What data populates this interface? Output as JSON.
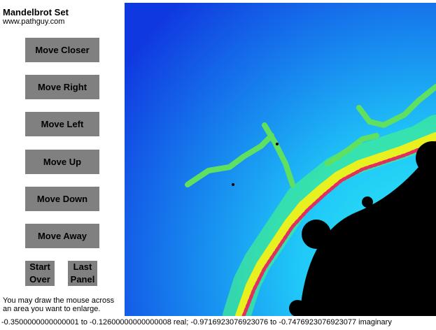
{
  "header": {
    "title": "Mandelbrot Set",
    "subtitle": "www.pathguy.com"
  },
  "buttons": [
    "Move Closer",
    "Move Right",
    "Move Left",
    "Move Up",
    "Move Down",
    "Move Away"
  ],
  "small_buttons": [
    "Start Over",
    "Last Panel"
  ],
  "instructions": "You may draw the mouse across an area you want to enlarge.",
  "status": "-0.3500000000000001 to -0.12600000000000008 real; -0.9716923076923076 to -0.7476923076923077 imaginary"
}
